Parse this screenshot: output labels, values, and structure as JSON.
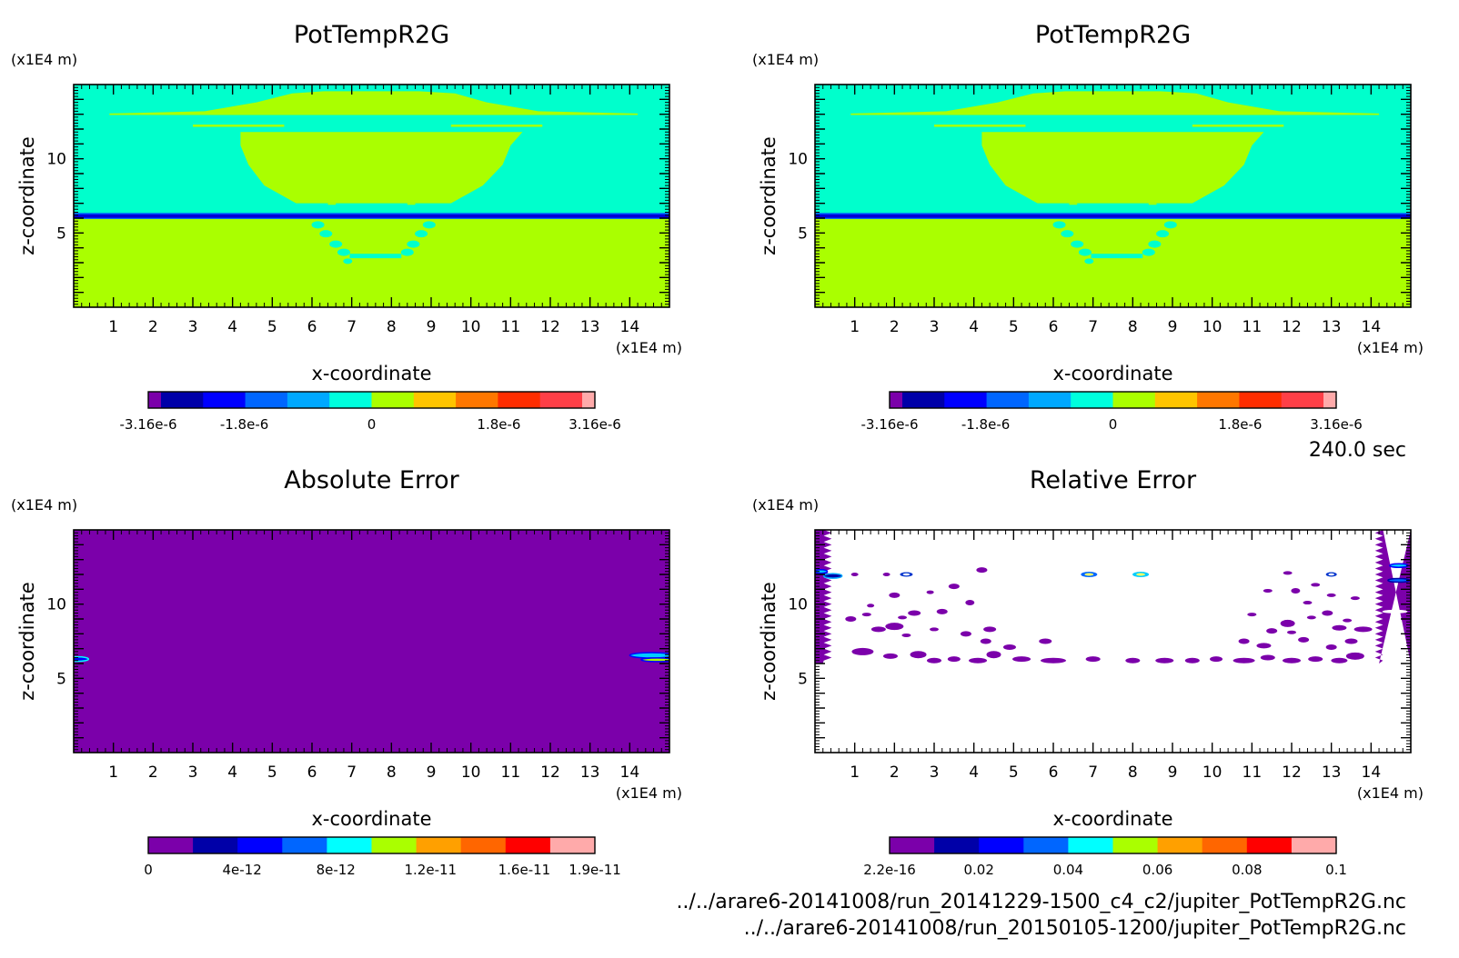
{
  "time_label": "240.0 sec",
  "source_files": [
    "../../arare6-20141008/run_20141229-1500_c4_c2/jupiter_PotTempR2G.nc",
    "../../arare6-20141008/run_20150105-1200/jupiter_PotTempR2G.nc"
  ],
  "chart_data": [
    {
      "type": "heatmap",
      "title": "PotTempR2G",
      "xlabel": "x-coordinate",
      "ylabel": "z-coordinate",
      "x_unit": "(x1E4 m)",
      "y_unit": "(x1E4 m)",
      "xlim": [
        0,
        15
      ],
      "ylim": [
        0,
        15
      ],
      "x_ticks": [
        1,
        2,
        3,
        4,
        5,
        6,
        7,
        8,
        9,
        10,
        11,
        12,
        13,
        14
      ],
      "y_ticks": [
        5,
        10
      ],
      "colorbar": {
        "colors": [
          "#7b00aa",
          "#0000a8",
          "#0000ff",
          "#0066ff",
          "#00a8ff",
          "#00ffdd",
          "#aaff00",
          "#ffc400",
          "#ff7700",
          "#ff2d00",
          "#ff3f47",
          "#ffaaaa"
        ],
        "ticks": [
          {
            "label": "-3.16e-6",
            "pos": 0
          },
          {
            "label": "-1.8e-6",
            "pos": 0.215
          },
          {
            "label": "0",
            "pos": 0.5
          },
          {
            "label": "1.8e-6",
            "pos": 0.785
          },
          {
            "label": "3.16e-6",
            "pos": 1
          }
        ]
      },
      "field": "pottemp"
    },
    {
      "type": "heatmap",
      "title": "PotTempR2G",
      "xlabel": "x-coordinate",
      "ylabel": "z-coordinate",
      "x_unit": "(x1E4 m)",
      "y_unit": "(x1E4 m)",
      "xlim": [
        0,
        15
      ],
      "ylim": [
        0,
        15
      ],
      "x_ticks": [
        1,
        2,
        3,
        4,
        5,
        6,
        7,
        8,
        9,
        10,
        11,
        12,
        13,
        14
      ],
      "y_ticks": [
        5,
        10
      ],
      "colorbar": {
        "colors": [
          "#7b00aa",
          "#0000a8",
          "#0000ff",
          "#0066ff",
          "#00a8ff",
          "#00ffdd",
          "#aaff00",
          "#ffc400",
          "#ff7700",
          "#ff2d00",
          "#ff3f47",
          "#ffaaaa"
        ],
        "ticks": [
          {
            "label": "-3.16e-6",
            "pos": 0
          },
          {
            "label": "-1.8e-6",
            "pos": 0.215
          },
          {
            "label": "0",
            "pos": 0.5
          },
          {
            "label": "1.8e-6",
            "pos": 0.785
          },
          {
            "label": "3.16e-6",
            "pos": 1
          }
        ]
      },
      "field": "pottemp"
    },
    {
      "type": "heatmap",
      "title": "Absolute Error",
      "xlabel": "x-coordinate",
      "ylabel": "z-coordinate",
      "x_unit": "(x1E4 m)",
      "y_unit": "(x1E4 m)",
      "xlim": [
        0,
        15
      ],
      "ylim": [
        0,
        15
      ],
      "x_ticks": [
        1,
        2,
        3,
        4,
        5,
        6,
        7,
        8,
        9,
        10,
        11,
        12,
        13,
        14
      ],
      "y_ticks": [
        5,
        10
      ],
      "colorbar": {
        "colors": [
          "#7b00aa",
          "#0000a8",
          "#0000ff",
          "#0066ff",
          "#00ffff",
          "#aaff00",
          "#ffa000",
          "#ff6600",
          "#ff0000",
          "#ffaaaa"
        ],
        "ticks": [
          {
            "label": "0",
            "pos": 0
          },
          {
            "label": "4e-12",
            "pos": 0.21
          },
          {
            "label": "8e-12",
            "pos": 0.42
          },
          {
            "label": "1.2e-11",
            "pos": 0.632
          },
          {
            "label": "1.6e-11",
            "pos": 0.842
          },
          {
            "label": "1.9e-11",
            "pos": 1
          }
        ]
      },
      "field": "abserr"
    },
    {
      "type": "heatmap",
      "title": "Relative Error",
      "xlabel": "x-coordinate",
      "ylabel": "z-coordinate",
      "x_unit": "(x1E4 m)",
      "y_unit": "(x1E4 m)",
      "xlim": [
        0,
        15
      ],
      "ylim": [
        0,
        15
      ],
      "x_ticks": [
        1,
        2,
        3,
        4,
        5,
        6,
        7,
        8,
        9,
        10,
        11,
        12,
        13,
        14
      ],
      "y_ticks": [
        5,
        10
      ],
      "colorbar": {
        "colors": [
          "#7b00aa",
          "#0000a8",
          "#0000ff",
          "#0066ff",
          "#00ffff",
          "#aaff00",
          "#ffa000",
          "#ff6600",
          "#ff0000",
          "#ffaaaa"
        ],
        "ticks": [
          {
            "label": "2.2e-16",
            "pos": 0
          },
          {
            "label": "0.02",
            "pos": 0.2
          },
          {
            "label": "0.04",
            "pos": 0.4
          },
          {
            "label": "0.06",
            "pos": 0.6
          },
          {
            "label": "0.08",
            "pos": 0.8
          },
          {
            "label": "0.1",
            "pos": 1
          }
        ]
      },
      "field": "relerr"
    }
  ]
}
